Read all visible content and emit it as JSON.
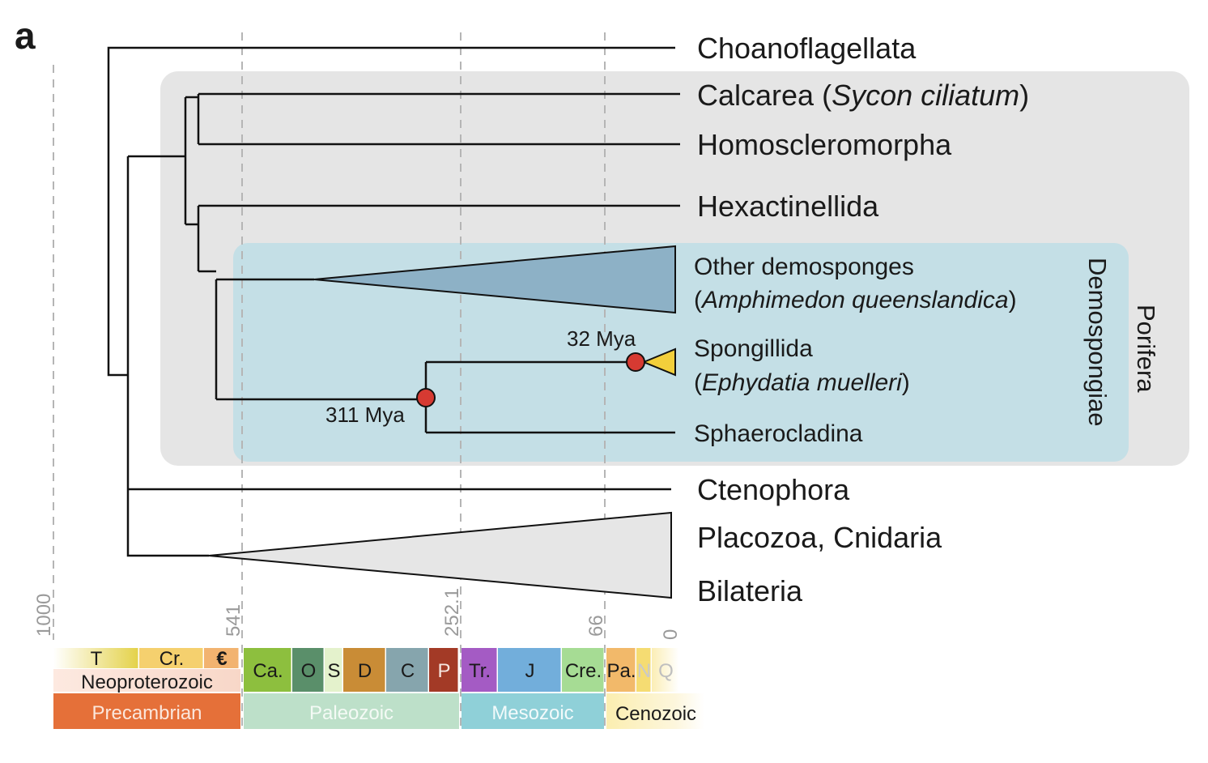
{
  "panel_label": "a",
  "taxa": {
    "choanoflagellata": "Choanoflagellata",
    "calcarea_prefix": "Calcarea (",
    "calcarea_species": "Sycon ciliatum",
    "calcarea_suffix": ")",
    "homoscleromorpha": "Homoscleromorpha",
    "hexactinellida": "Hexactinellida",
    "other_demosponges": "Other demosponges",
    "amphimedon_open": "(",
    "amphimedon_species": "Amphimedon queenslandica",
    "amphimedon_close": ")",
    "spongillida": "Spongillida",
    "ephydatia_open": "(",
    "ephydatia_species": "Ephydatia muelleri",
    "ephydatia_close": ")",
    "sphaerocladina": "Sphaerocladina",
    "ctenophora": "Ctenophora",
    "placozoa_cnidaria": "Placozoa, Cnidaria",
    "bilateria": "Bilateria"
  },
  "clades": {
    "demospongiae": "Demospongiae",
    "porifera": "Porifera"
  },
  "node_annotations": {
    "spongillida_crown": "32 Mya",
    "spongillida_stem": "311 Mya"
  },
  "time_axis": {
    "unit": "Mya",
    "ticks": [
      "1000",
      "541",
      "252.1",
      "66",
      "0"
    ]
  },
  "periods": [
    {
      "label": "T",
      "color": "#e4d24a"
    },
    {
      "label": "Cr.",
      "color": "#f5d06e"
    },
    {
      "label": "€",
      "color": "#f2b370"
    },
    {
      "label": "Ca.",
      "color": "#8dbf3e"
    },
    {
      "label": "O",
      "color": "#5a8f6a"
    },
    {
      "label": "S",
      "color": "#e4f2cc"
    },
    {
      "label": "D",
      "color": "#c98c36"
    },
    {
      "label": "C",
      "color": "#86a5ad"
    },
    {
      "label": "P",
      "color": "#a33a26"
    },
    {
      "label": "Tr.",
      "color": "#a45bc4"
    },
    {
      "label": "J",
      "color": "#72aedb"
    },
    {
      "label": "Cre.",
      "color": "#a6dc94"
    },
    {
      "label": "Pa.",
      "color": "#f2b96a"
    },
    {
      "label": "N",
      "color": "#f5dc72"
    },
    {
      "label": "Q",
      "color": "#fbeeb5"
    }
  ],
  "eras": [
    {
      "label": "Neoproterozoic",
      "color": "#f8d7c8"
    },
    {
      "label": "Precambrian",
      "color": "#e57039"
    },
    {
      "label": "Paleozoic",
      "color": "#bde0c9"
    },
    {
      "label": "Mesozoic",
      "color": "#8fd0d8"
    },
    {
      "label": "Cenozoic",
      "color": "#fbeeb0"
    }
  ],
  "colors": {
    "porifera_box": "#e5e5e5",
    "demospongiae_box": "#c4dfe6",
    "node_marker": "#d63a32",
    "spongillida_wedge": "#f2cf3b",
    "demosponge_wedge": "#8db1c6",
    "outgroup_wedge": "#e6e6e6"
  }
}
